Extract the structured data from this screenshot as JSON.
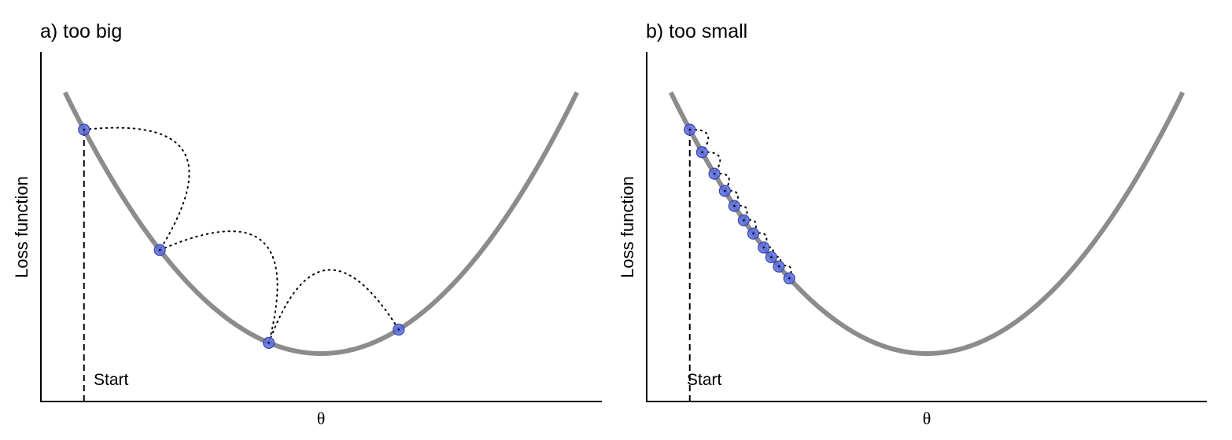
{
  "chart_data": [
    {
      "type": "line",
      "title": "a) too big",
      "xlabel": "θ",
      "ylabel": "Loss function",
      "annotation": "Start",
      "theta_range": [
        -2.7,
        2.7
      ],
      "loss_range": [
        0.0,
        8.25
      ],
      "curve": {
        "formula": "loss = theta^2",
        "color": "#8c8c8c"
      },
      "start_theta": -2.5,
      "steps": [
        {
          "theta": -2.5,
          "loss": 6.25
        },
        {
          "theta": -1.7,
          "loss": 2.89
        },
        {
          "theta": -0.55,
          "loss": 0.3
        },
        {
          "theta": 0.82,
          "loss": 0.67
        }
      ],
      "point_color": "#5b6ee1"
    },
    {
      "type": "line",
      "title": "b) too small",
      "xlabel": "θ",
      "ylabel": "Loss function",
      "annotation": "Start",
      "theta_range": [
        -2.7,
        2.7
      ],
      "loss_range": [
        0.0,
        8.25
      ],
      "curve": {
        "formula": "loss = theta^2",
        "color": "#8c8c8c"
      },
      "start_theta": -2.5,
      "steps": [
        {
          "theta": -2.5,
          "loss": 6.25
        },
        {
          "theta": -2.37,
          "loss": 5.62
        },
        {
          "theta": -2.24,
          "loss": 5.02
        },
        {
          "theta": -2.13,
          "loss": 4.54
        },
        {
          "theta": -2.03,
          "loss": 4.12
        },
        {
          "theta": -1.93,
          "loss": 3.72
        },
        {
          "theta": -1.83,
          "loss": 3.35
        },
        {
          "theta": -1.72,
          "loss": 2.96
        },
        {
          "theta": -1.64,
          "loss": 2.69
        },
        {
          "theta": -1.56,
          "loss": 2.43
        },
        {
          "theta": -1.45,
          "loss": 2.1
        }
      ],
      "point_color": "#5b6ee1"
    }
  ]
}
